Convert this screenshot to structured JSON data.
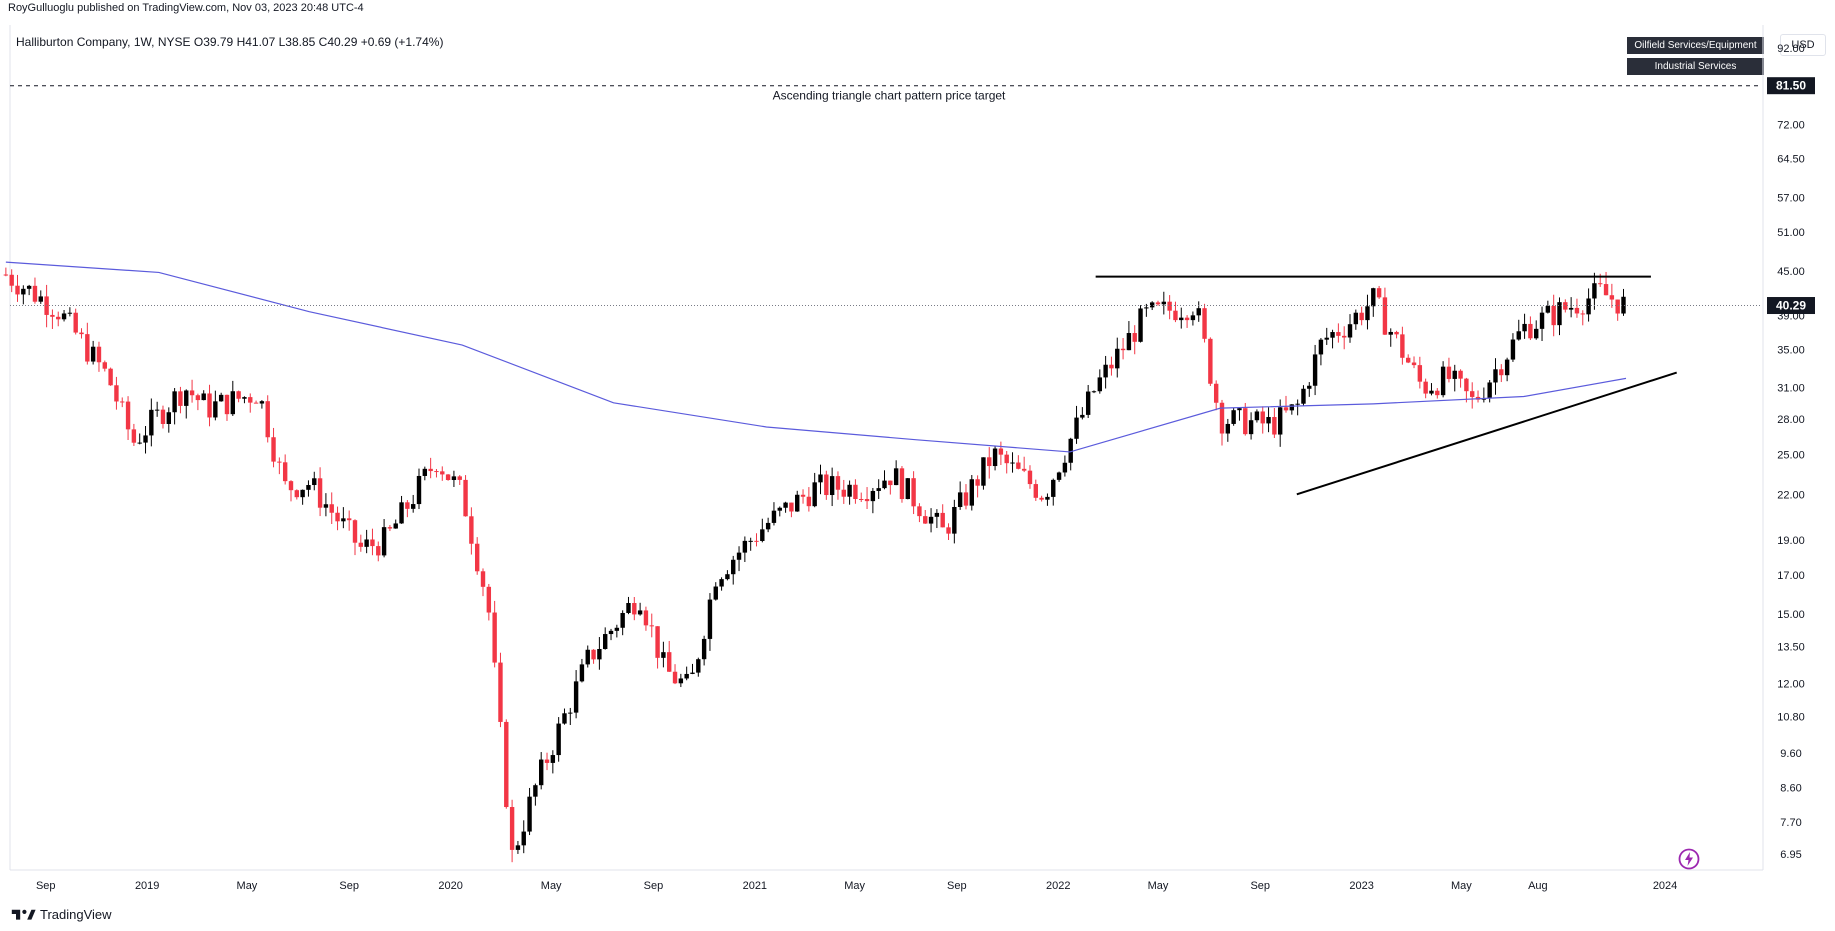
{
  "header": {
    "published": "RoyGulluoglu published on TradingView.com, Nov 03, 2023 20:48 UTC-4"
  },
  "legend": {
    "symbol": "Halliburton Company, 1W, NYSE",
    "open": "O39.79",
    "high": "H41.07",
    "low": "L38.85",
    "close": "C40.29",
    "change": "+0.69 (+1.74%)"
  },
  "tags": [
    "Oilfield Services/Equipment",
    "Industrial Services"
  ],
  "currency": "USD",
  "footer": {
    "brand": "TradingView"
  },
  "icons": {
    "logo": "tradingview-logo-icon",
    "flash": "lightning-icon"
  },
  "colors": {
    "up": "#000000",
    "down": "#f23645",
    "ma": "#5b5bdc",
    "pattern": "#000000"
  },
  "chart_data": {
    "type": "candlestick",
    "title": "Halliburton Company, 1W, NYSE",
    "annotation": "Ascending triangle chart pattern price target",
    "target_price": 81.5,
    "last_price": 40.29,
    "y_scale": "log",
    "ylim": [
      6.6,
      99
    ],
    "x_tick_labels": [
      "Sep",
      "2019",
      "May",
      "Sep",
      "2020",
      "May",
      "Sep",
      "2021",
      "May",
      "Sep",
      "2022",
      "May",
      "Sep",
      "2023",
      "May",
      "Aug",
      "2024"
    ],
    "y_tick_labels": [
      "92.00",
      "72.00",
      "64.50",
      "57.00",
      "51.00",
      "45.00",
      "39.00",
      "35.00",
      "31.00",
      "28.00",
      "25.00",
      "22.00",
      "19.00",
      "17.00",
      "15.00",
      "13.50",
      "12.00",
      "10.80",
      "9.60",
      "8.60",
      "7.70",
      "6.95"
    ],
    "resistance": 44.2,
    "support_line": [
      {
        "date": "2022-10",
        "value": 22.0
      },
      {
        "date": "2024-01",
        "value": 32.5
      }
    ],
    "moving_average": [
      {
        "date": "2018-07",
        "value": 46.3
      },
      {
        "date": "2019-01",
        "value": 44.8
      },
      {
        "date": "2019-07",
        "value": 39.5
      },
      {
        "date": "2020-01",
        "value": 35.5
      },
      {
        "date": "2020-07",
        "value": 29.5
      },
      {
        "date": "2021-01",
        "value": 27.3
      },
      {
        "date": "2021-07",
        "value": 26.2
      },
      {
        "date": "2022-01",
        "value": 25.2
      },
      {
        "date": "2022-07",
        "value": 29.0
      },
      {
        "date": "2023-01",
        "value": 29.4
      },
      {
        "date": "2023-07",
        "value": 30.1
      },
      {
        "date": "2023-11",
        "value": 31.9
      }
    ],
    "price_path": [
      {
        "date": "2018-07",
        "value": 44.5
      },
      {
        "date": "2018-09",
        "value": 39.8
      },
      {
        "date": "2018-11",
        "value": 32.0
      },
      {
        "date": "2018-12",
        "value": 26.0
      },
      {
        "date": "2019-02",
        "value": 31.0
      },
      {
        "date": "2019-03",
        "value": 29.0
      },
      {
        "date": "2019-05",
        "value": 30.5
      },
      {
        "date": "2019-06",
        "value": 22.5
      },
      {
        "date": "2019-07",
        "value": 22.8
      },
      {
        "date": "2019-09",
        "value": 18.5
      },
      {
        "date": "2019-10",
        "value": 19.0
      },
      {
        "date": "2019-12",
        "value": 24.6
      },
      {
        "date": "2020-01",
        "value": 22.0
      },
      {
        "date": "2020-02",
        "value": 15.5
      },
      {
        "date": "2020-03",
        "value": 6.9
      },
      {
        "date": "2020-04",
        "value": 8.8
      },
      {
        "date": "2020-06",
        "value": 13.0
      },
      {
        "date": "2020-08",
        "value": 16.0
      },
      {
        "date": "2020-09",
        "value": 12.5
      },
      {
        "date": "2020-10",
        "value": 11.8
      },
      {
        "date": "2020-11",
        "value": 17.0
      },
      {
        "date": "2021-01",
        "value": 20.0
      },
      {
        "date": "2021-03",
        "value": 22.5
      },
      {
        "date": "2021-05",
        "value": 22.5
      },
      {
        "date": "2021-06",
        "value": 23.5
      },
      {
        "date": "2021-08",
        "value": 19.5
      },
      {
        "date": "2021-10",
        "value": 25.0
      },
      {
        "date": "2021-12",
        "value": 22.0
      },
      {
        "date": "2022-02",
        "value": 31.0
      },
      {
        "date": "2022-04",
        "value": 39.0
      },
      {
        "date": "2022-06",
        "value": 40.5
      },
      {
        "date": "2022-07",
        "value": 28.0
      },
      {
        "date": "2022-09",
        "value": 27.5
      },
      {
        "date": "2022-10",
        "value": 29.0
      },
      {
        "date": "2022-11",
        "value": 36.0
      },
      {
        "date": "2022-12",
        "value": 38.0
      },
      {
        "date": "2023-01",
        "value": 41.0
      },
      {
        "date": "2023-03",
        "value": 31.0
      },
      {
        "date": "2023-04",
        "value": 32.0
      },
      {
        "date": "2023-05",
        "value": 29.5
      },
      {
        "date": "2023-07",
        "value": 37.5
      },
      {
        "date": "2023-08",
        "value": 39.0
      },
      {
        "date": "2023-10",
        "value": 42.0
      },
      {
        "date": "2023-11",
        "value": 40.29
      }
    ]
  }
}
